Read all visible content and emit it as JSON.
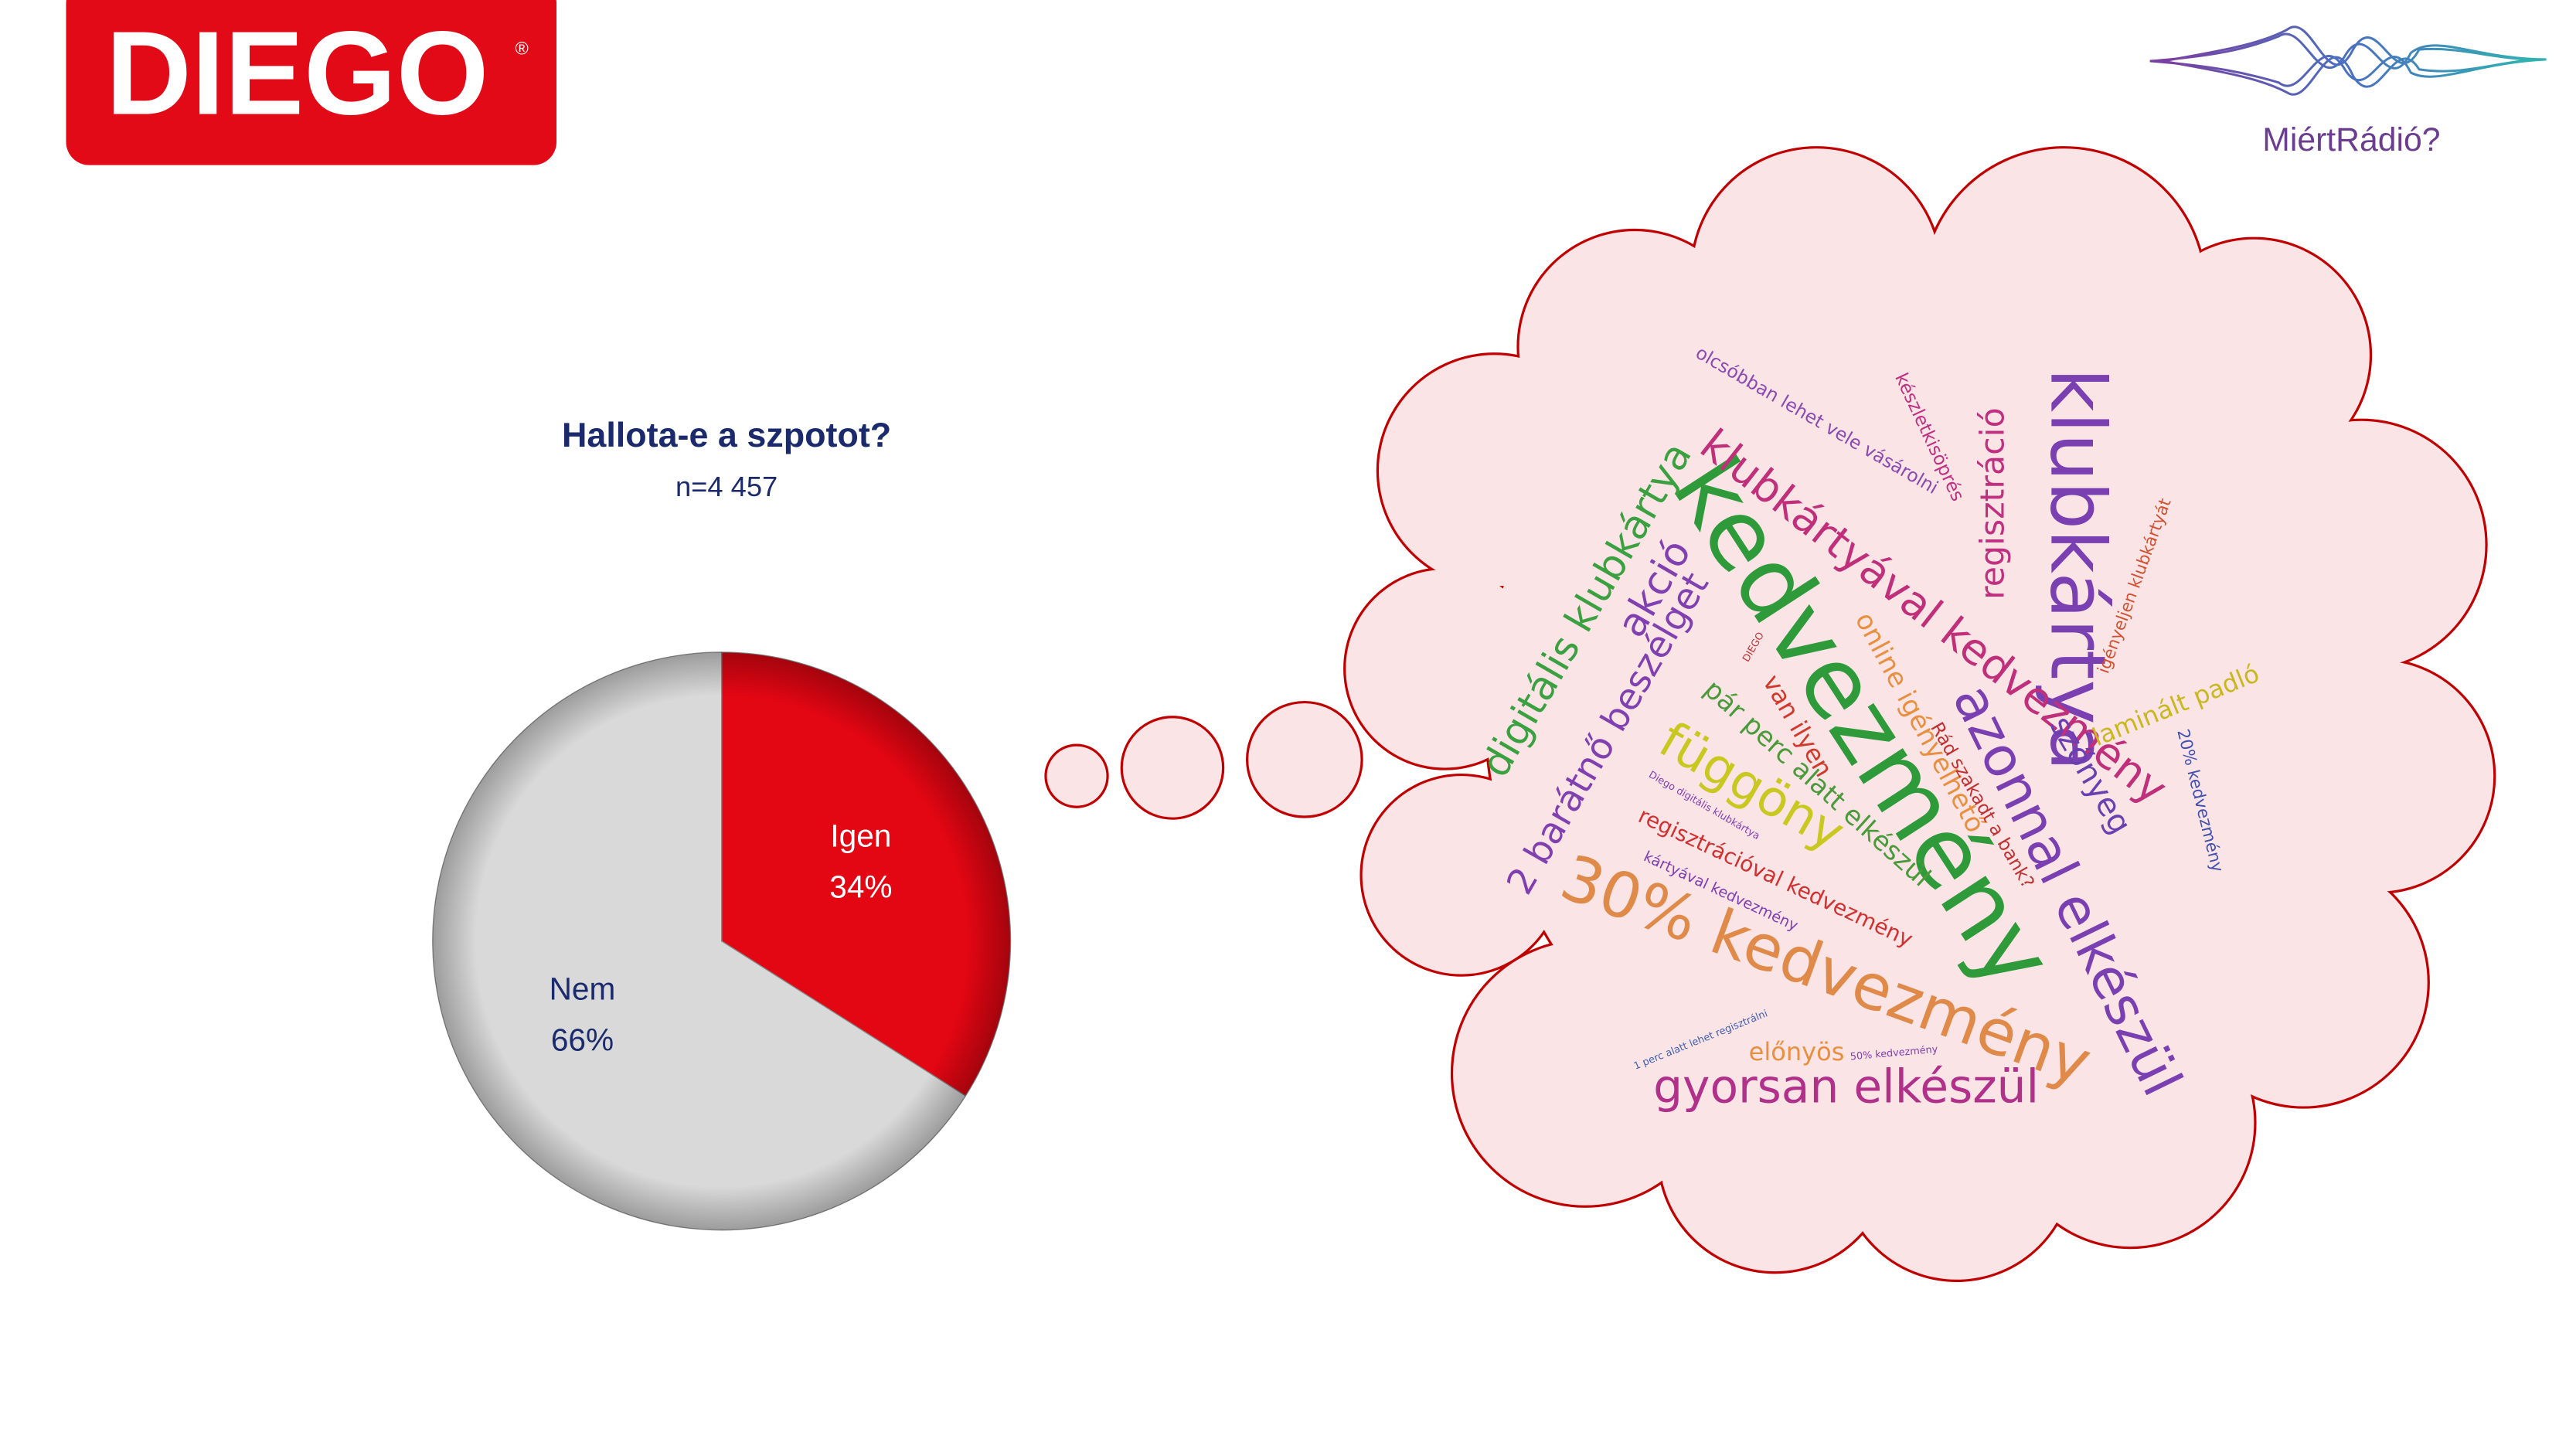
{
  "logos": {
    "brand": "DIEGO",
    "brand_mark": "®",
    "radio": "MiértRádió?"
  },
  "chart_data": {
    "type": "pie",
    "title": "Hallota-e a szpotot?",
    "subtitle": "n=4 457",
    "categories": [
      "Igen",
      "Nem"
    ],
    "values": [
      34,
      66
    ],
    "value_labels": [
      "34%",
      "66%"
    ],
    "colors": [
      "#e30613",
      "#d9d9d9"
    ]
  },
  "word_cloud": {
    "words": [
      "kedvezmény",
      "klubkártya",
      "30% kedvezmény",
      "azonnal elkészül",
      "gyorsan elkészül",
      "klubkártyával kedvezmény",
      "függöny",
      "digitális klubkártya",
      "2 barátnő beszélget",
      "akció",
      "regisztráció",
      "szőnyeg",
      "laminált padló",
      "online igényelhető",
      "pár perc alatt elkészül",
      "van ilyen",
      "regisztrációval kedvezmény",
      "olcsóbban lehet vele vásárolni",
      "készletkisöprés",
      "igényeljen klubkártyát",
      "20% kedvezmény",
      "előnyös",
      "Rád szakadt a bank?",
      "kártyával kedvezmény",
      "Diego digitális klubkártya",
      "1 perc alatt lehet regisztrálni",
      "50% kedvezmény",
      "DIEGO"
    ]
  }
}
